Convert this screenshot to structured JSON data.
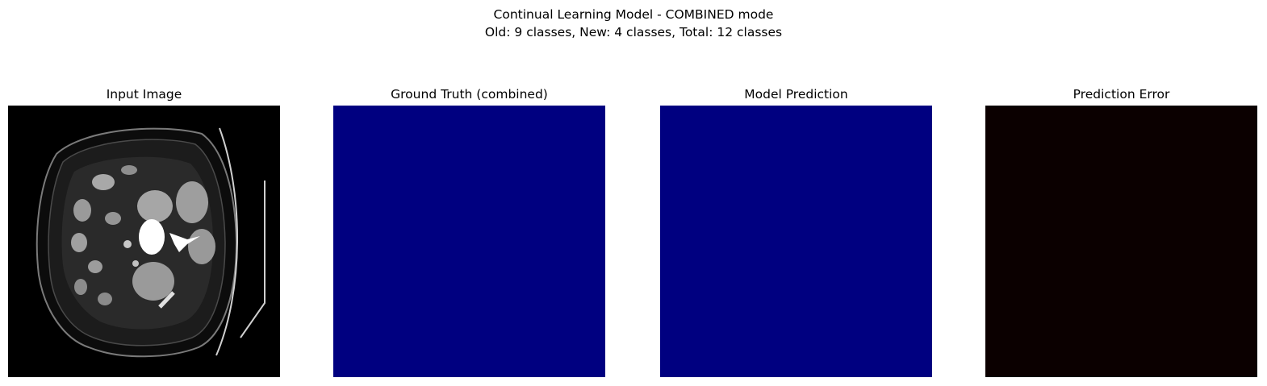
{
  "figure": {
    "title_line1": "Continual Learning Model - COMBINED mode",
    "title_line2": "Old: 9 classes, New: 4 classes, Total: 12 classes"
  },
  "panels": [
    {
      "title": "Input Image",
      "kind": "ct-scan-grayscale"
    },
    {
      "title": "Ground Truth (combined)",
      "kind": "segmentation-mask",
      "fill": "#000080"
    },
    {
      "title": "Model Prediction",
      "kind": "segmentation-mask",
      "fill": "#000080"
    },
    {
      "title": "Prediction Error",
      "kind": "error-map",
      "fill": "#0b0000"
    }
  ]
}
